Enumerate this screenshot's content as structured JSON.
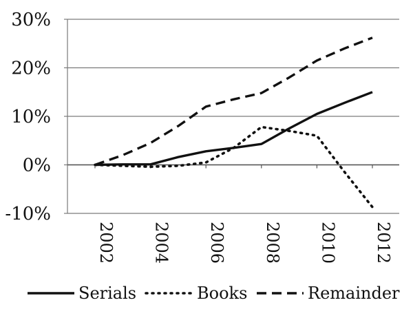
{
  "chart_data": {
    "type": "line",
    "x": [
      "2002",
      "2003",
      "2004",
      "2005",
      "2006",
      "2007",
      "2008",
      "2009",
      "2010",
      "2011",
      "2012"
    ],
    "x_tick_labels": [
      "2002",
      "2004",
      "2006",
      "2008",
      "2010",
      "2012"
    ],
    "y_tick_labels": [
      "30%",
      "20%",
      "10%",
      "0%",
      "-10%"
    ],
    "ylim": [
      -10,
      30
    ],
    "grid": true,
    "legend_position": "bottom",
    "series": [
      {
        "name": "Serials",
        "style": "solid",
        "color": "#111111",
        "values": [
          0.0,
          0.1,
          0.1,
          1.6,
          2.8,
          3.5,
          4.3,
          7.5,
          10.5,
          12.8,
          15.0
        ]
      },
      {
        "name": "Books",
        "style": "dotted",
        "color": "#111111",
        "values": [
          0.0,
          -0.2,
          -0.4,
          -0.2,
          0.5,
          3.5,
          7.8,
          7.0,
          6.0,
          -1.5,
          -8.7
        ]
      },
      {
        "name": "Remainder",
        "style": "dashed",
        "color": "#111111",
        "values": [
          0.0,
          2.0,
          4.5,
          8.0,
          12.0,
          13.5,
          14.8,
          18.0,
          21.5,
          24.0,
          26.2
        ]
      }
    ]
  }
}
